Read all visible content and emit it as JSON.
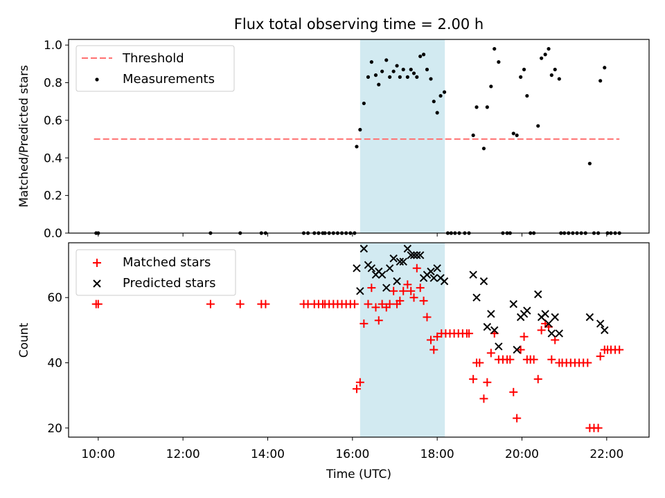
{
  "chart_data": [
    {
      "type": "scatter",
      "title": "Flux total observing time = 2.00 h",
      "xlabel": "",
      "ylabel": "Matched/Predicted stars",
      "xlim": [
        9.3,
        23.0
      ],
      "ylim": [
        0.0,
        1.03
      ],
      "x_tick_values": [
        10,
        12,
        14,
        16,
        18,
        20,
        22
      ],
      "y_ticks": [
        "0.0",
        "0.2",
        "0.4",
        "0.6",
        "0.8",
        "1.0"
      ],
      "y_tick_values": [
        0.0,
        0.2,
        0.4,
        0.6,
        0.8,
        1.0
      ],
      "shaded_region": {
        "x": [
          16.18,
          18.18
        ],
        "color": "#add8e6"
      },
      "legend": {
        "placement": "top-left",
        "entries": [
          "Threshold",
          "Measurements"
        ]
      },
      "series": [
        {
          "name": "Threshold",
          "style": "dashed-line",
          "color": "#ff7070",
          "x": [
            9.9,
            22.3
          ],
          "y": [
            0.5,
            0.5
          ]
        },
        {
          "name": "Measurements",
          "style": "dot",
          "color": "#000000",
          "points": [
            [
              9.95,
              0
            ],
            [
              10.0,
              0
            ],
            [
              12.65,
              0
            ],
            [
              13.35,
              0
            ],
            [
              13.85,
              0
            ],
            [
              13.95,
              0
            ],
            [
              14.85,
              0
            ],
            [
              14.95,
              0
            ],
            [
              15.1,
              0
            ],
            [
              15.2,
              0
            ],
            [
              15.3,
              0
            ],
            [
              15.35,
              0
            ],
            [
              15.45,
              0
            ],
            [
              15.55,
              0
            ],
            [
              15.65,
              0
            ],
            [
              15.75,
              0
            ],
            [
              15.85,
              0
            ],
            [
              15.95,
              0
            ],
            [
              16.05,
              0
            ],
            [
              16.1,
              0.46
            ],
            [
              16.18,
              0.55
            ],
            [
              16.27,
              0.69
            ],
            [
              16.37,
              0.83
            ],
            [
              16.45,
              0.91
            ],
            [
              16.55,
              0.84
            ],
            [
              16.62,
              0.79
            ],
            [
              16.7,
              0.86
            ],
            [
              16.8,
              0.92
            ],
            [
              16.88,
              0.83
            ],
            [
              16.97,
              0.86
            ],
            [
              17.05,
              0.89
            ],
            [
              17.12,
              0.83
            ],
            [
              17.2,
              0.87
            ],
            [
              17.3,
              0.83
            ],
            [
              17.38,
              0.87
            ],
            [
              17.45,
              0.85
            ],
            [
              17.52,
              0.83
            ],
            [
              17.6,
              0.94
            ],
            [
              17.68,
              0.95
            ],
            [
              17.76,
              0.87
            ],
            [
              17.85,
              0.82
            ],
            [
              17.92,
              0.7
            ],
            [
              18.0,
              0.64
            ],
            [
              18.08,
              0.73
            ],
            [
              18.17,
              0.75
            ],
            [
              18.25,
              0
            ],
            [
              18.33,
              0
            ],
            [
              18.42,
              0
            ],
            [
              18.52,
              0
            ],
            [
              18.65,
              0
            ],
            [
              18.75,
              0
            ],
            [
              18.85,
              0.52
            ],
            [
              18.93,
              0.67
            ],
            [
              19.1,
              0.45
            ],
            [
              19.18,
              0.67
            ],
            [
              19.27,
              0.78
            ],
            [
              19.35,
              0.98
            ],
            [
              19.45,
              0.91
            ],
            [
              19.55,
              0
            ],
            [
              19.65,
              0
            ],
            [
              19.72,
              0
            ],
            [
              19.8,
              0.53
            ],
            [
              19.88,
              0.52
            ],
            [
              19.97,
              0.83
            ],
            [
              20.05,
              0.87
            ],
            [
              20.12,
              0.73
            ],
            [
              20.2,
              0
            ],
            [
              20.28,
              0
            ],
            [
              20.38,
              0.57
            ],
            [
              20.46,
              0.93
            ],
            [
              20.55,
              0.95
            ],
            [
              20.63,
              0.98
            ],
            [
              20.7,
              0.84
            ],
            [
              20.78,
              0.87
            ],
            [
              20.88,
              0.82
            ],
            [
              20.92,
              0
            ],
            [
              21.0,
              0
            ],
            [
              21.1,
              0
            ],
            [
              21.2,
              0
            ],
            [
              21.3,
              0
            ],
            [
              21.4,
              0
            ],
            [
              21.5,
              0
            ],
            [
              21.6,
              0.37
            ],
            [
              21.7,
              0
            ],
            [
              21.8,
              0
            ],
            [
              21.85,
              0.81
            ],
            [
              21.95,
              0.88
            ],
            [
              22.02,
              0
            ],
            [
              22.1,
              0
            ],
            [
              22.2,
              0
            ],
            [
              22.3,
              0
            ]
          ]
        }
      ]
    },
    {
      "type": "scatter",
      "title": "",
      "xlabel": "Time (UTC)",
      "ylabel": "Count",
      "xlim": [
        9.3,
        23.0
      ],
      "ylim": [
        17.2,
        76.8
      ],
      "x_ticks": [
        "10:00",
        "12:00",
        "14:00",
        "16:00",
        "18:00",
        "20:00",
        "22:00"
      ],
      "x_tick_values": [
        10,
        12,
        14,
        16,
        18,
        20,
        22
      ],
      "y_ticks": [
        "20",
        "40",
        "60"
      ],
      "y_tick_values": [
        20,
        40,
        60
      ],
      "shaded_region": {
        "x": [
          16.18,
          18.18
        ],
        "color": "#add8e6"
      },
      "legend": {
        "placement": "top-left",
        "entries": [
          "Matched stars",
          "Predicted stars"
        ]
      },
      "series": [
        {
          "name": "Matched stars",
          "style": "plus",
          "color": "#ff0000",
          "points": [
            [
              9.95,
              58
            ],
            [
              10.0,
              58
            ],
            [
              12.65,
              58
            ],
            [
              13.35,
              58
            ],
            [
              13.85,
              58
            ],
            [
              13.95,
              58
            ],
            [
              14.85,
              58
            ],
            [
              14.95,
              58
            ],
            [
              15.1,
              58
            ],
            [
              15.2,
              58
            ],
            [
              15.3,
              58
            ],
            [
              15.35,
              58
            ],
            [
              15.45,
              58
            ],
            [
              15.55,
              58
            ],
            [
              15.65,
              58
            ],
            [
              15.75,
              58
            ],
            [
              15.85,
              58
            ],
            [
              15.95,
              58
            ],
            [
              16.05,
              58
            ],
            [
              16.1,
              32
            ],
            [
              16.18,
              34
            ],
            [
              16.27,
              52
            ],
            [
              16.37,
              58
            ],
            [
              16.45,
              63
            ],
            [
              16.55,
              57
            ],
            [
              16.62,
              53
            ],
            [
              16.7,
              58
            ],
            [
              16.8,
              57
            ],
            [
              16.88,
              58
            ],
            [
              16.97,
              62
            ],
            [
              17.05,
              58
            ],
            [
              17.12,
              59
            ],
            [
              17.2,
              62
            ],
            [
              17.3,
              64
            ],
            [
              17.38,
              62
            ],
            [
              17.45,
              60
            ],
            [
              17.52,
              69
            ],
            [
              17.6,
              63
            ],
            [
              17.68,
              59
            ],
            [
              17.76,
              54
            ],
            [
              17.85,
              47
            ],
            [
              17.92,
              44
            ],
            [
              18.0,
              48
            ],
            [
              18.1,
              49
            ],
            [
              18.2,
              49
            ],
            [
              18.3,
              49
            ],
            [
              18.4,
              49
            ],
            [
              18.5,
              49
            ],
            [
              18.6,
              49
            ],
            [
              18.7,
              49
            ],
            [
              18.75,
              49
            ],
            [
              18.85,
              35
            ],
            [
              18.93,
              40
            ],
            [
              19.0,
              40
            ],
            [
              19.1,
              29
            ],
            [
              19.18,
              34
            ],
            [
              19.27,
              43
            ],
            [
              19.35,
              49
            ],
            [
              19.45,
              41
            ],
            [
              19.55,
              41
            ],
            [
              19.65,
              41
            ],
            [
              19.72,
              41
            ],
            [
              19.8,
              31
            ],
            [
              19.88,
              23
            ],
            [
              19.97,
              44
            ],
            [
              20.05,
              48
            ],
            [
              20.12,
              41
            ],
            [
              20.2,
              41
            ],
            [
              20.28,
              41
            ],
            [
              20.38,
              35
            ],
            [
              20.46,
              50
            ],
            [
              20.55,
              52
            ],
            [
              20.63,
              51
            ],
            [
              20.7,
              41
            ],
            [
              20.78,
              47
            ],
            [
              20.88,
              40
            ],
            [
              20.95,
              40
            ],
            [
              21.05,
              40
            ],
            [
              21.15,
              40
            ],
            [
              21.25,
              40
            ],
            [
              21.35,
              40
            ],
            [
              21.45,
              40
            ],
            [
              21.55,
              40
            ],
            [
              21.6,
              20
            ],
            [
              21.7,
              20
            ],
            [
              21.8,
              20
            ],
            [
              21.85,
              42
            ],
            [
              21.95,
              44
            ],
            [
              22.02,
              44
            ],
            [
              22.1,
              44
            ],
            [
              22.2,
              44
            ],
            [
              22.3,
              44
            ]
          ]
        },
        {
          "name": "Predicted stars",
          "style": "x",
          "color": "#000000",
          "points": [
            [
              16.1,
              69
            ],
            [
              16.18,
              62
            ],
            [
              16.27,
              75
            ],
            [
              16.37,
              70
            ],
            [
              16.45,
              69
            ],
            [
              16.55,
              67
            ],
            [
              16.62,
              68
            ],
            [
              16.7,
              67
            ],
            [
              16.8,
              63
            ],
            [
              16.88,
              69
            ],
            [
              16.97,
              72
            ],
            [
              17.05,
              65
            ],
            [
              17.12,
              71
            ],
            [
              17.2,
              71
            ],
            [
              17.3,
              75
            ],
            [
              17.38,
              73
            ],
            [
              17.45,
              73
            ],
            [
              17.52,
              73
            ],
            [
              17.6,
              73
            ],
            [
              17.68,
              66
            ],
            [
              17.76,
              67
            ],
            [
              17.85,
              68
            ],
            [
              17.92,
              66
            ],
            [
              18.0,
              69
            ],
            [
              18.08,
              66
            ],
            [
              18.17,
              65
            ],
            [
              18.85,
              67
            ],
            [
              18.93,
              60
            ],
            [
              19.1,
              65
            ],
            [
              19.18,
              51
            ],
            [
              19.27,
              55
            ],
            [
              19.35,
              50
            ],
            [
              19.45,
              45
            ],
            [
              19.8,
              58
            ],
            [
              19.88,
              44
            ],
            [
              19.97,
              54
            ],
            [
              20.05,
              55
            ],
            [
              20.12,
              56
            ],
            [
              20.38,
              61
            ],
            [
              20.46,
              54
            ],
            [
              20.55,
              55
            ],
            [
              20.63,
              52
            ],
            [
              20.7,
              49
            ],
            [
              20.78,
              54
            ],
            [
              20.88,
              49
            ],
            [
              21.6,
              54
            ],
            [
              21.85,
              52
            ],
            [
              21.95,
              50
            ]
          ]
        }
      ]
    }
  ]
}
